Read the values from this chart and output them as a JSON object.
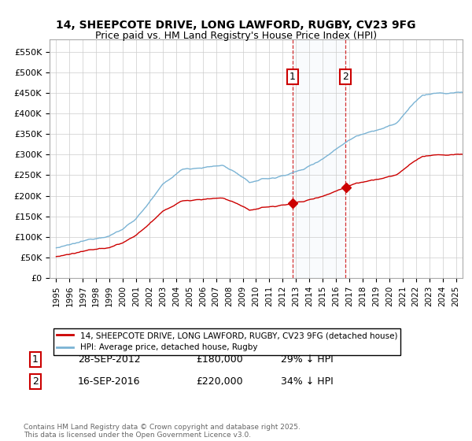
{
  "title": "14, SHEEPCOTE DRIVE, LONG LAWFORD, RUGBY, CV23 9FG",
  "subtitle": "Price paid vs. HM Land Registry's House Price Index (HPI)",
  "ylim": [
    0,
    580000
  ],
  "yticks": [
    0,
    50000,
    100000,
    150000,
    200000,
    250000,
    300000,
    350000,
    400000,
    450000,
    500000,
    550000
  ],
  "ytick_labels": [
    "£0",
    "£50K",
    "£100K",
    "£150K",
    "£200K",
    "£250K",
    "£300K",
    "£350K",
    "£400K",
    "£450K",
    "£500K",
    "£550K"
  ],
  "hpi_color": "#7ab3d4",
  "price_color": "#cc0000",
  "purchase1_date": 2012.75,
  "purchase1_price": 180000,
  "purchase2_date": 2016.71,
  "purchase2_price": 220000,
  "legend_label1": "14, SHEEPCOTE DRIVE, LONG LAWFORD, RUGBY, CV23 9FG (detached house)",
  "legend_label2": "HPI: Average price, detached house, Rugby",
  "annotation1_label": "1",
  "annotation1_date": "28-SEP-2012",
  "annotation1_price": "£180,000",
  "annotation1_hpi": "29% ↓ HPI",
  "annotation2_label": "2",
  "annotation2_date": "16-SEP-2016",
  "annotation2_price": "£220,000",
  "annotation2_hpi": "34% ↓ HPI",
  "footer": "Contains HM Land Registry data © Crown copyright and database right 2025.\nThis data is licensed under the Open Government Licence v3.0.",
  "background_color": "#ffffff",
  "grid_color": "#cccccc"
}
